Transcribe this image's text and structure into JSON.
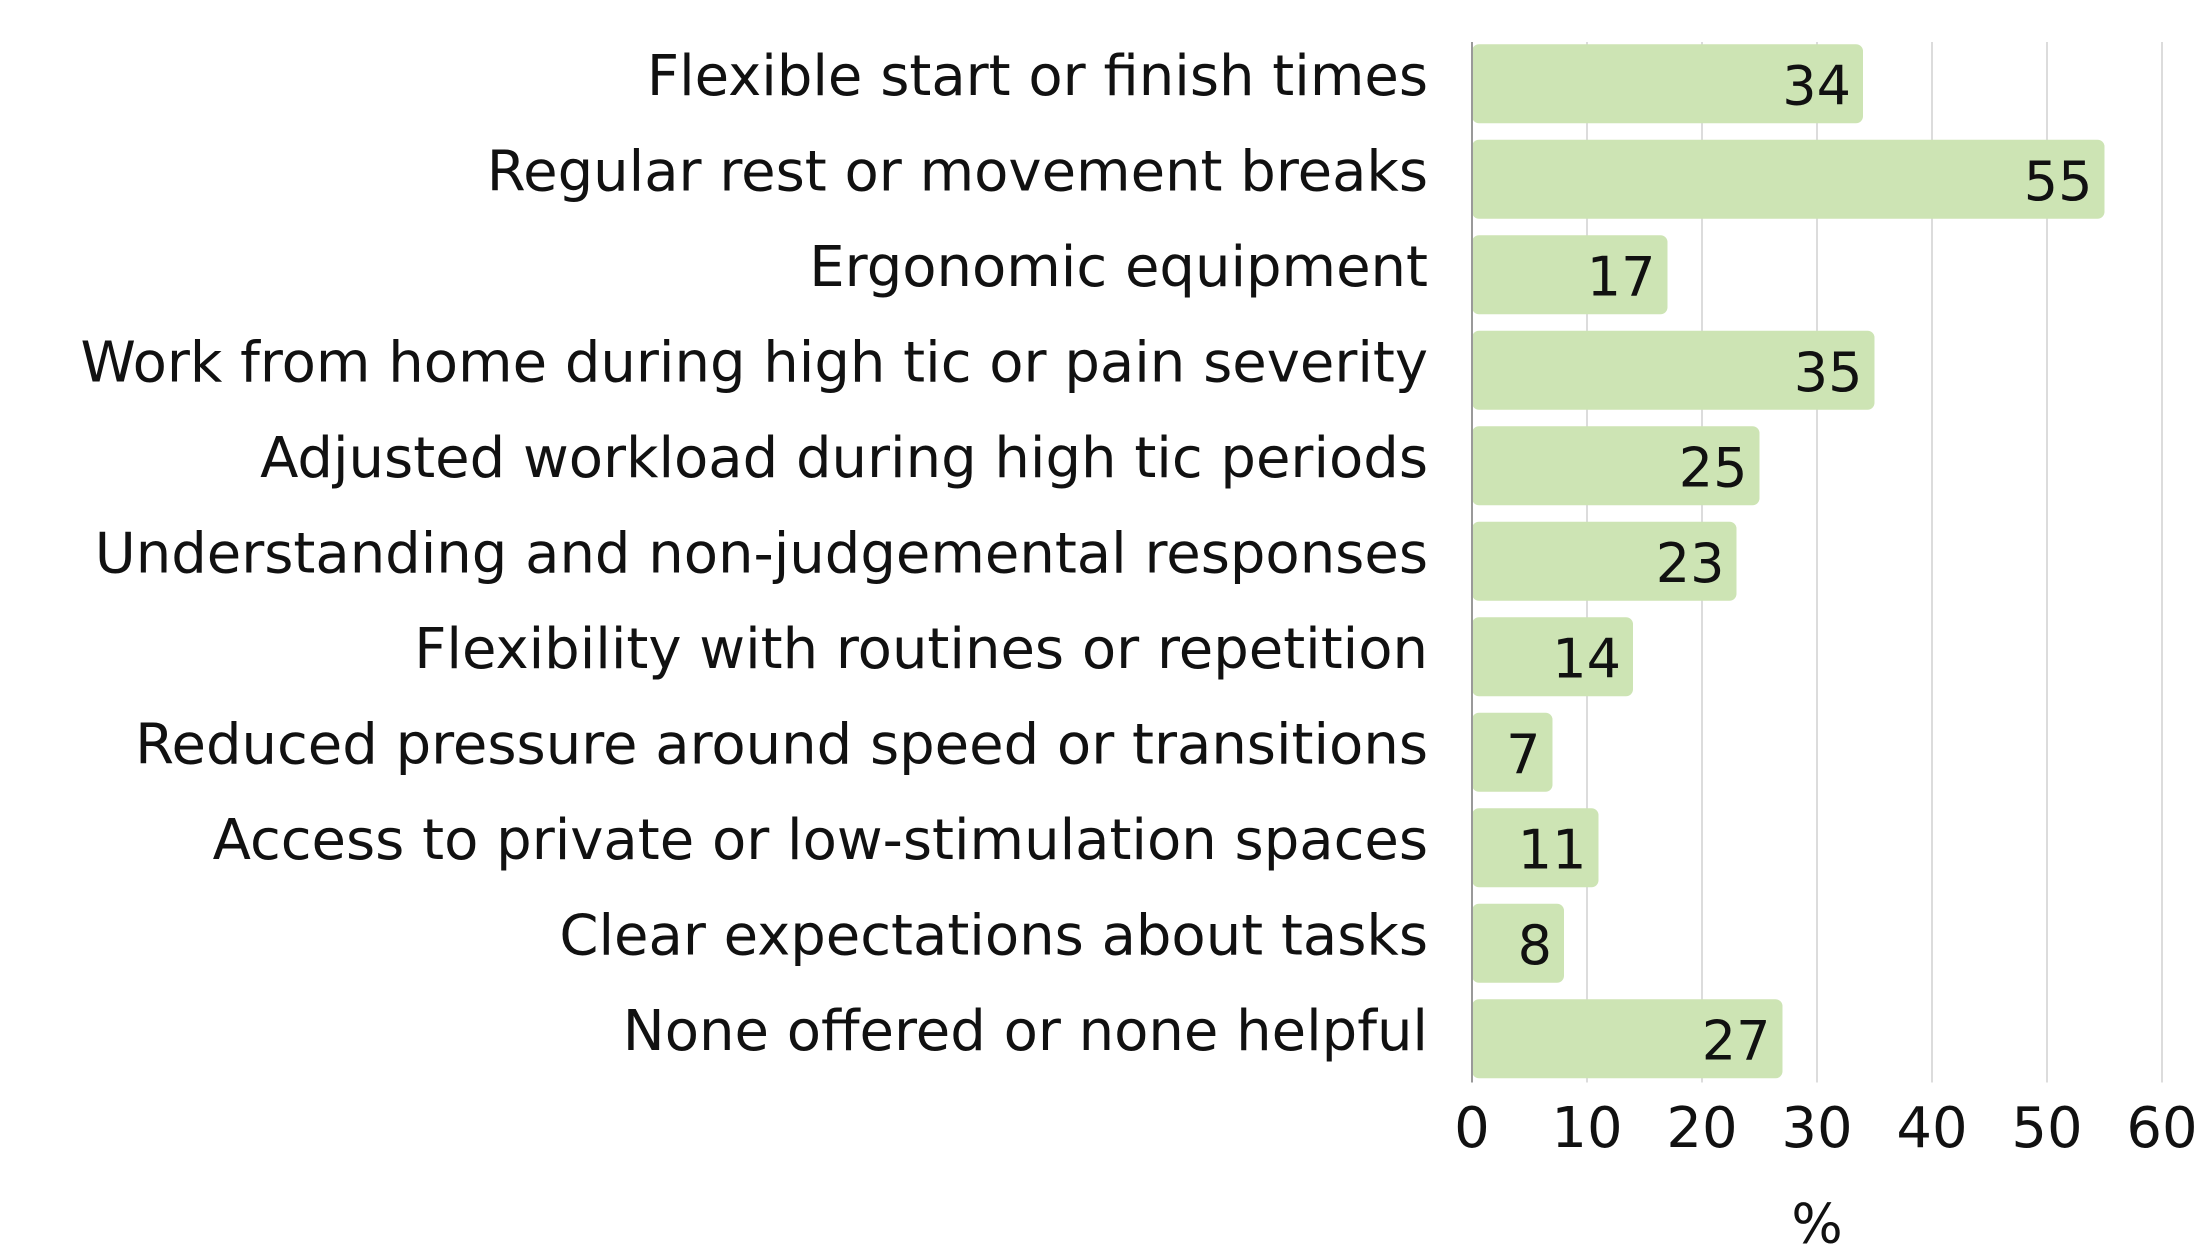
{
  "chart_data": {
    "type": "hbar",
    "categories": [
      "Flexible start or finish times",
      "Regular rest or movement breaks",
      "Ergonomic equipment",
      "Work from home during high tic or pain severity",
      "Adjusted workload during high tic periods",
      "Understanding and non-judgemental responses",
      "Flexibility with routines or repetition",
      "Reduced pressure around speed or transitions",
      "Access to private or low-stimulation spaces",
      "Clear expectations about tasks",
      "None offered or none helpful"
    ],
    "values": [
      34,
      55,
      17,
      35,
      25,
      23,
      14,
      7,
      11,
      8,
      27
    ],
    "color": "#cde4b4",
    "xlim": [
      0,
      60
    ],
    "xticks": [
      0,
      10,
      20,
      30,
      40,
      50,
      60
    ],
    "xlabel": "%",
    "grid": true
  }
}
